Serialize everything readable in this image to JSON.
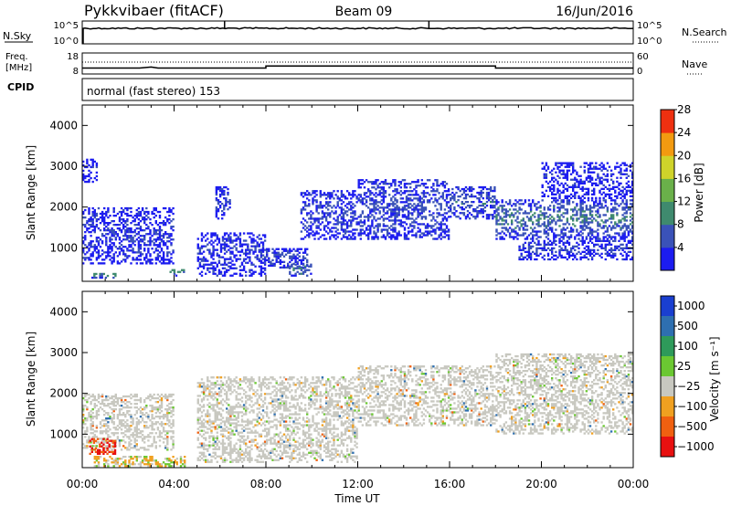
{
  "header": {
    "radar": "Pykkvibaer (fitACF)",
    "beam": "Beam 09",
    "date": "16/Jun/2016"
  },
  "nsky_panel": {
    "left_label": "N.Sky",
    "right_label": "N.Search",
    "left_ticks": [
      "10^5",
      "10^0"
    ],
    "right_ticks": [
      "10^5",
      "10^0"
    ]
  },
  "freq_panel": {
    "left_label_line1": "Freq.",
    "left_label_line2": "[MHz]",
    "right_label": "Nave",
    "left_ticks": [
      "18",
      "8"
    ],
    "right_ticks": [
      "60",
      "0"
    ],
    "freq_steps": [
      {
        "t": 0,
        "v": 10.5
      },
      {
        "t": 2.5,
        "v": 10.5
      },
      {
        "t": 3.0,
        "v": 11.3
      },
      {
        "t": 3.3,
        "v": 10.5
      },
      {
        "t": 8.0,
        "v": 10.5
      },
      {
        "t": 8.0,
        "v": 12.2
      },
      {
        "t": 18.0,
        "v": 12.2
      },
      {
        "t": 18.0,
        "v": 10.5
      },
      {
        "t": 24.0,
        "v": 10.5
      }
    ]
  },
  "cpid": {
    "label": "CPID",
    "text": "normal (fast stereo) 153"
  },
  "chart_data": [
    {
      "type": "heatmap",
      "quantity": "power",
      "ylabel": "Slant Range [km]",
      "xlim": [
        0,
        24
      ],
      "ylim": [
        180,
        4500
      ],
      "yticks": [
        1000,
        2000,
        3000,
        4000
      ],
      "colorbar": {
        "label": "Power [dB]",
        "ticks": [
          "4",
          "8",
          "12",
          "16",
          "20",
          "24",
          "28"
        ],
        "colors": [
          "#1c1cf0",
          "#3a52b8",
          "#3f8a6e",
          "#6ab04a",
          "#cfd32a",
          "#f29a10",
          "#ee3010"
        ]
      },
      "echo_regions": [
        {
          "t0": 0.0,
          "t1": 4.0,
          "r0": 600,
          "r1": 2000,
          "level": 4
        },
        {
          "t0": 0.0,
          "t1": 0.7,
          "r0": 2600,
          "r1": 3200,
          "level": 2
        },
        {
          "t0": 0.4,
          "t1": 1.5,
          "r0": 250,
          "r1": 400,
          "level": 12
        },
        {
          "t0": 3.8,
          "t1": 4.5,
          "r0": 300,
          "r1": 500,
          "level": 11
        },
        {
          "t0": 5.0,
          "t1": 8.0,
          "r0": 300,
          "r1": 1400,
          "level": 4
        },
        {
          "t0": 5.8,
          "t1": 6.5,
          "r0": 1700,
          "r1": 2500,
          "level": 5
        },
        {
          "t0": 8.0,
          "t1": 9.8,
          "r0": 500,
          "r1": 1000,
          "level": 5
        },
        {
          "t0": 9.0,
          "t1": 10.0,
          "r0": 300,
          "r1": 600,
          "level": 10
        },
        {
          "t0": 9.5,
          "t1": 12.0,
          "r0": 1200,
          "r1": 2400,
          "level": 5
        },
        {
          "t0": 12.0,
          "t1": 16.0,
          "r0": 1200,
          "r1": 2700,
          "level": 6
        },
        {
          "t0": 16.0,
          "t1": 18.0,
          "r0": 1700,
          "r1": 2500,
          "level": 7
        },
        {
          "t0": 18.0,
          "t1": 24.0,
          "r0": 1200,
          "r1": 2200,
          "level": 9
        },
        {
          "t0": 19.0,
          "t1": 24.0,
          "r0": 700,
          "r1": 1200,
          "level": 5
        },
        {
          "t0": 20.0,
          "t1": 24.0,
          "r0": 2200,
          "r1": 3100,
          "level": 3
        }
      ]
    },
    {
      "type": "heatmap",
      "quantity": "velocity",
      "xlabel": "Time UT",
      "ylabel": "Slant Range [km]",
      "xlim": [
        0,
        24
      ],
      "ylim": [
        180,
        4500
      ],
      "xticks": [
        "00:00",
        "04:00",
        "08:00",
        "12:00",
        "16:00",
        "20:00",
        "00:00"
      ],
      "yticks": [
        1000,
        2000,
        3000,
        4000
      ],
      "colorbar": {
        "label": "Velocity [m s⁻¹]",
        "ticks": [
          "1000",
          "500",
          "100",
          "25",
          "−25",
          "−100",
          "−500",
          "−1000"
        ],
        "colors": [
          "#1a3fd0",
          "#2e6fb0",
          "#2e9a5a",
          "#6bc832",
          "#c8c8c0",
          "#f0a020",
          "#f06010",
          "#e81010"
        ]
      },
      "echo_regions": [
        {
          "t0": 0.0,
          "t1": 4.0,
          "r0": 600,
          "r1": 2000,
          "class": "low"
        },
        {
          "t0": 0.3,
          "t1": 1.5,
          "r0": 500,
          "r1": 900,
          "class": "receding"
        },
        {
          "t0": 0.5,
          "t1": 4.5,
          "r0": 200,
          "r1": 450,
          "class": "approach-slow"
        },
        {
          "t0": 5.0,
          "t1": 12.0,
          "r0": 300,
          "r1": 2400,
          "class": "low"
        },
        {
          "t0": 12.0,
          "t1": 18.0,
          "r0": 1200,
          "r1": 2700,
          "class": "low"
        },
        {
          "t0": 18.0,
          "t1": 24.0,
          "r0": 1000,
          "r1": 3000,
          "class": "low"
        }
      ]
    }
  ]
}
